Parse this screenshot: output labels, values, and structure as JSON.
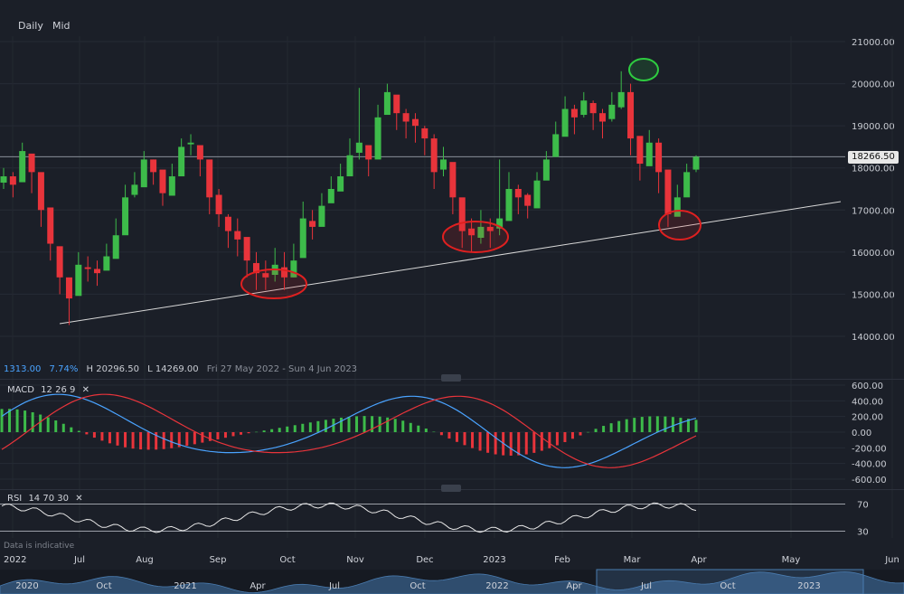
{
  "toolbar": {
    "daily_label": "Daily",
    "mid_label": "Mid"
  },
  "info": {
    "change": "1313.00",
    "change_pct": "7.74%",
    "high": "H 20296.50",
    "low": "L 14269.00",
    "range": "Fri 27 May 2022 - Sun 4 Jun 2023"
  },
  "current_price": "18266.50",
  "disclaimer": "Data is indicative",
  "macd": {
    "label": "MACD",
    "params": [
      "12",
      "26",
      "9"
    ]
  },
  "rsi": {
    "label": "RSI",
    "params": [
      "14",
      "70",
      "30"
    ]
  },
  "colors": {
    "up": "#3dbb4a",
    "down": "#e8343b",
    "macd_line": "#4aa3ff",
    "signal_line": "#e8343b",
    "annotation_red": "#e02020",
    "annotation_green": "#2ecc40"
  },
  "chart_data": {
    "type": "candlestick",
    "y_ticks": [
      "21000.00",
      "20000.00",
      "19000.00",
      "18000.00",
      "17000.00",
      "16000.00",
      "15000.00",
      "14000.00"
    ],
    "ylim": [
      13700,
      21300
    ],
    "x_ticks": [
      "2022",
      "Jul",
      "Aug",
      "Sep",
      "Oct",
      "Nov",
      "Dec",
      "2023",
      "Feb",
      "Mar",
      "Apr",
      "May",
      "Jun"
    ],
    "macd_ticks": [
      "600.00",
      "400.00",
      "200.00",
      "0.00",
      "-200.00",
      "-400.00",
      "-600.00"
    ],
    "rsi_ticks": [
      "70",
      "30"
    ],
    "navigator_ticks": [
      "2020",
      "Oct",
      "2021",
      "Apr",
      "Jul",
      "Oct",
      "2022",
      "Apr",
      "Jul",
      "Oct",
      "2023"
    ],
    "trendline": {
      "start": 14300,
      "end": 17200
    },
    "closes": [
      17800,
      17600,
      18400,
      17900,
      17000,
      16200,
      15400,
      14900,
      15700,
      15600,
      15500,
      15900,
      16400,
      17300,
      17600,
      18200,
      17900,
      17400,
      17800,
      18500,
      18600,
      18200,
      17300,
      16900,
      16500,
      16300,
      15800,
      15500,
      15400,
      15700,
      15400,
      15800,
      16800,
      16600,
      17100,
      17500,
      17800,
      18300,
      18600,
      18200,
      19200,
      19800,
      19300,
      19100,
      19000,
      18700,
      17900,
      18200,
      17300,
      16500,
      16400,
      16600,
      16500,
      16800,
      17500,
      17300,
      17100,
      17700,
      18200,
      18800,
      19400,
      19200,
      19600,
      19300,
      19100,
      19500,
      19800,
      18700,
      18100,
      18600,
      17900,
      16900,
      17300,
      17900,
      18266
    ],
    "highs": [
      18000,
      17900,
      18600,
      18200,
      17400,
      16700,
      15800,
      15300,
      16000,
      15900,
      15800,
      16200,
      16800,
      17600,
      17900,
      18400,
      18200,
      17800,
      18100,
      18700,
      18800,
      18500,
      17600,
      17500,
      16900,
      16800,
      16300,
      16000,
      15800,
      16100,
      16000,
      16200,
      17200,
      17000,
      17400,
      17800,
      18100,
      18700,
      19900,
      18500,
      19500,
      20000,
      19600,
      19400,
      19300,
      19000,
      18800,
      18500,
      17900,
      17200,
      16800,
      17000,
      16800,
      18200,
      17900,
      17600,
      17400,
      17900,
      18400,
      19100,
      19700,
      19500,
      19800,
      19600,
      19400,
      19800,
      20296,
      20000,
      18600,
      18900,
      18700,
      17700,
      17600,
      18100,
      18300
    ],
    "lows": [
      17500,
      17300,
      18000,
      17400,
      16600,
      15800,
      15000,
      14269,
      15300,
      15300,
      15200,
      15600,
      16100,
      17000,
      17300,
      17800,
      17600,
      17100,
      17500,
      18200,
      18300,
      17800,
      16900,
      16600,
      16100,
      15900,
      15400,
      15100,
      15100,
      15300,
      15100,
      15400,
      16400,
      16300,
      16700,
      17200,
      17500,
      17900,
      18200,
      17800,
      18800,
      19300,
      18900,
      18700,
      18600,
      18300,
      17500,
      17800,
      16900,
      16100,
      16000,
      16200,
      16100,
      16400,
      17000,
      16900,
      16800,
      17300,
      17800,
      18400,
      19000,
      18800,
      19200,
      18900,
      18700,
      19100,
      19400,
      18300,
      17700,
      18200,
      17400,
      16600,
      16900,
      17600,
      17900
    ]
  }
}
